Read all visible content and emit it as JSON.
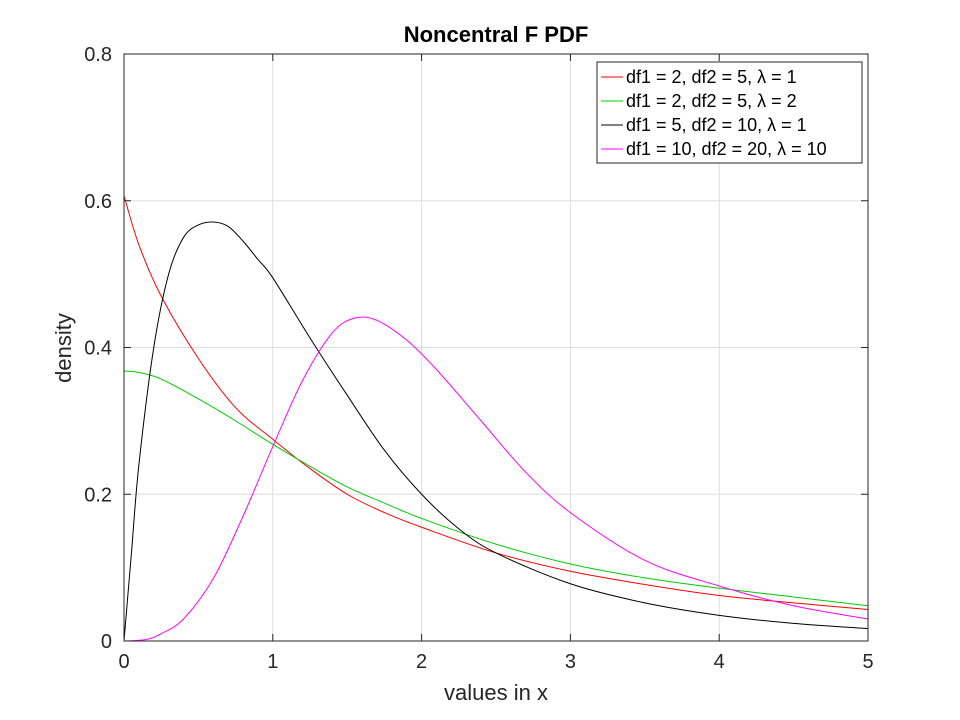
{
  "chart_data": {
    "type": "line",
    "title": "Noncentral F PDF",
    "xlabel": "values in x",
    "ylabel": "density",
    "xlim": [
      0,
      5
    ],
    "ylim": [
      0,
      0.8
    ],
    "xticks": [
      0,
      1,
      2,
      3,
      4,
      5
    ],
    "yticks": [
      0,
      0.2,
      0.4,
      0.6,
      0.8
    ],
    "xtick_labels": [
      "0",
      "1",
      "2",
      "3",
      "4",
      "5"
    ],
    "ytick_labels": [
      "0",
      "0.2",
      "0.4",
      "0.6",
      "0.8"
    ],
    "grid": true,
    "legend_position": "top-right",
    "series": [
      {
        "name": "df1 = 2, df2 = 5, λ = 1",
        "color": "#ff0000",
        "x": [
          0,
          0.1,
          0.25,
          0.5,
          0.75,
          1.0,
          1.25,
          1.5,
          1.75,
          2.0,
          2.5,
          3.0,
          3.5,
          4.0,
          4.5,
          5.0
        ],
        "y": [
          0.607,
          0.54,
          0.47,
          0.385,
          0.318,
          0.275,
          0.235,
          0.2,
          0.175,
          0.155,
          0.12,
          0.095,
          0.077,
          0.062,
          0.052,
          0.043
        ]
      },
      {
        "name": "df1 = 2, df2 = 5, λ = 2",
        "color": "#00cc00",
        "x": [
          0,
          0.1,
          0.25,
          0.5,
          0.75,
          1.0,
          1.25,
          1.5,
          1.75,
          2.0,
          2.5,
          3.0,
          3.5,
          4.0,
          4.5,
          5.0
        ],
        "y": [
          0.368,
          0.366,
          0.357,
          0.33,
          0.3,
          0.268,
          0.238,
          0.21,
          0.188,
          0.167,
          0.132,
          0.105,
          0.086,
          0.072,
          0.06,
          0.048
        ]
      },
      {
        "name": "df1 = 5, df2 = 10, λ = 1",
        "color": "#000000",
        "x": [
          0,
          0.05,
          0.1,
          0.2,
          0.3,
          0.4,
          0.5,
          0.6,
          0.7,
          0.8,
          0.9,
          1.0,
          1.25,
          1.5,
          1.75,
          2.0,
          2.25,
          2.5,
          3.0,
          3.5,
          4.0,
          4.5,
          5.0
        ],
        "y": [
          0,
          0.12,
          0.24,
          0.4,
          0.5,
          0.55,
          0.567,
          0.571,
          0.565,
          0.545,
          0.52,
          0.495,
          0.413,
          0.335,
          0.26,
          0.2,
          0.153,
          0.12,
          0.078,
          0.052,
          0.035,
          0.024,
          0.017
        ]
      },
      {
        "name": "df1 = 10, df2 = 20, λ = 10",
        "color": "#ff00ff",
        "x": [
          0,
          0.15,
          0.25,
          0.4,
          0.6,
          0.8,
          1.0,
          1.2,
          1.4,
          1.55,
          1.7,
          1.9,
          2.1,
          2.4,
          2.7,
          3.0,
          3.5,
          4.0,
          4.5,
          5.0
        ],
        "y": [
          0,
          0.002,
          0.01,
          0.03,
          0.085,
          0.17,
          0.265,
          0.355,
          0.42,
          0.44,
          0.437,
          0.41,
          0.37,
          0.3,
          0.23,
          0.175,
          0.11,
          0.075,
          0.048,
          0.03
        ]
      }
    ]
  }
}
